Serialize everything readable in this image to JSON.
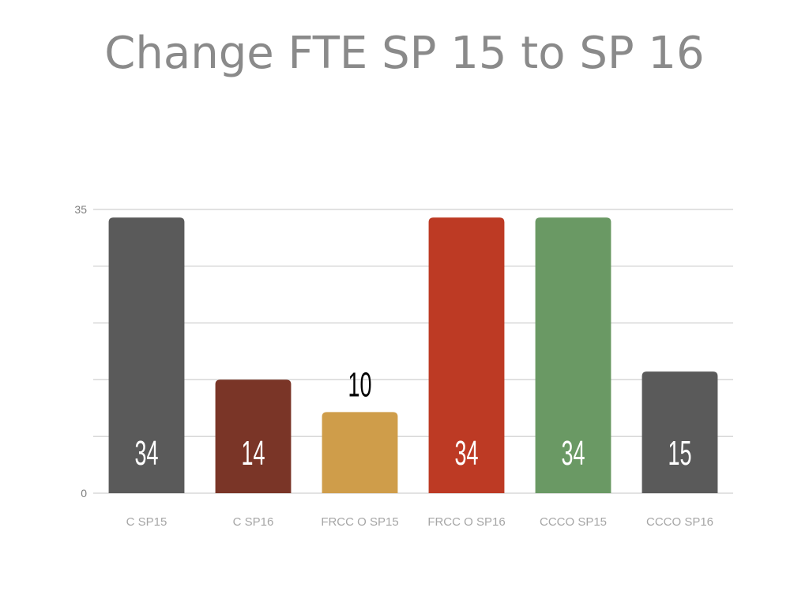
{
  "chart_data": {
    "type": "bar",
    "title": "Change FTE SP 15 to SP 16",
    "xlabel": "",
    "ylabel": "",
    "ylim": [
      0,
      35
    ],
    "yticks": [
      "0",
      "35"
    ],
    "grid": true,
    "categories": [
      "C  SP15",
      "C SP16",
      "FRCC O SP15",
      "FRCC O SP16",
      "CCCO SP15",
      "CCCO SP16"
    ],
    "values": [
      34,
      14,
      10,
      34,
      34,
      15
    ],
    "data_labels": [
      "34",
      "14",
      "10",
      "34",
      "34",
      "15"
    ],
    "colors": [
      "#5a5a5a",
      "#7a3527",
      "#cf9d4a",
      "#bd3a24",
      "#6a9964",
      "#5a5a5a"
    ],
    "label_colors": [
      "#ffffff",
      "#ffffff",
      "#000000",
      "#ffffff",
      "#ffffff",
      "#ffffff"
    ],
    "label_inside": [
      true,
      true,
      false,
      true,
      true,
      true
    ]
  }
}
